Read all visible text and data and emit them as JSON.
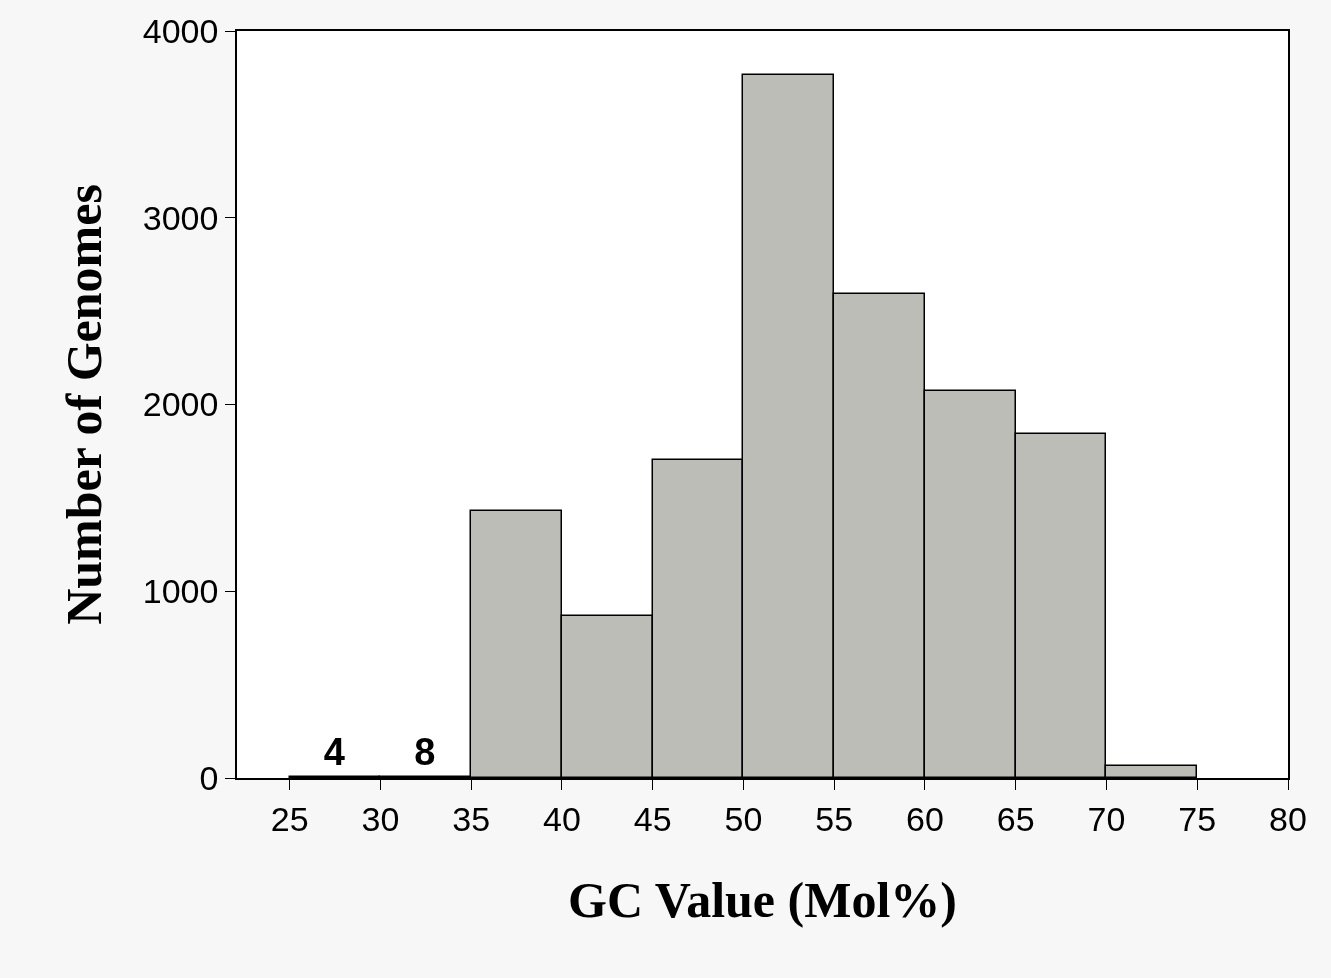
{
  "chart_data": {
    "type": "histogram",
    "xlabel": "GC Value (Mol%)",
    "ylabel": "Number of Genomes",
    "bins": [
      25,
      30,
      35,
      40,
      45,
      50,
      55,
      60,
      65,
      70,
      75
    ],
    "values": [
      4,
      8,
      1430,
      865,
      1705,
      3765,
      2590,
      2070,
      1840,
      65
    ],
    "value_labels": [
      "4",
      "8",
      null,
      null,
      null,
      null,
      null,
      null,
      null,
      null
    ],
    "color": "#bdbdb7",
    "xlim": [
      22.1,
      80
    ],
    "xticks": [
      25,
      30,
      35,
      40,
      45,
      50,
      55,
      60,
      65,
      70,
      75,
      80
    ],
    "ylim": [
      0,
      4000
    ],
    "yticks": [
      0,
      1000,
      2000,
      3000,
      4000
    ]
  }
}
